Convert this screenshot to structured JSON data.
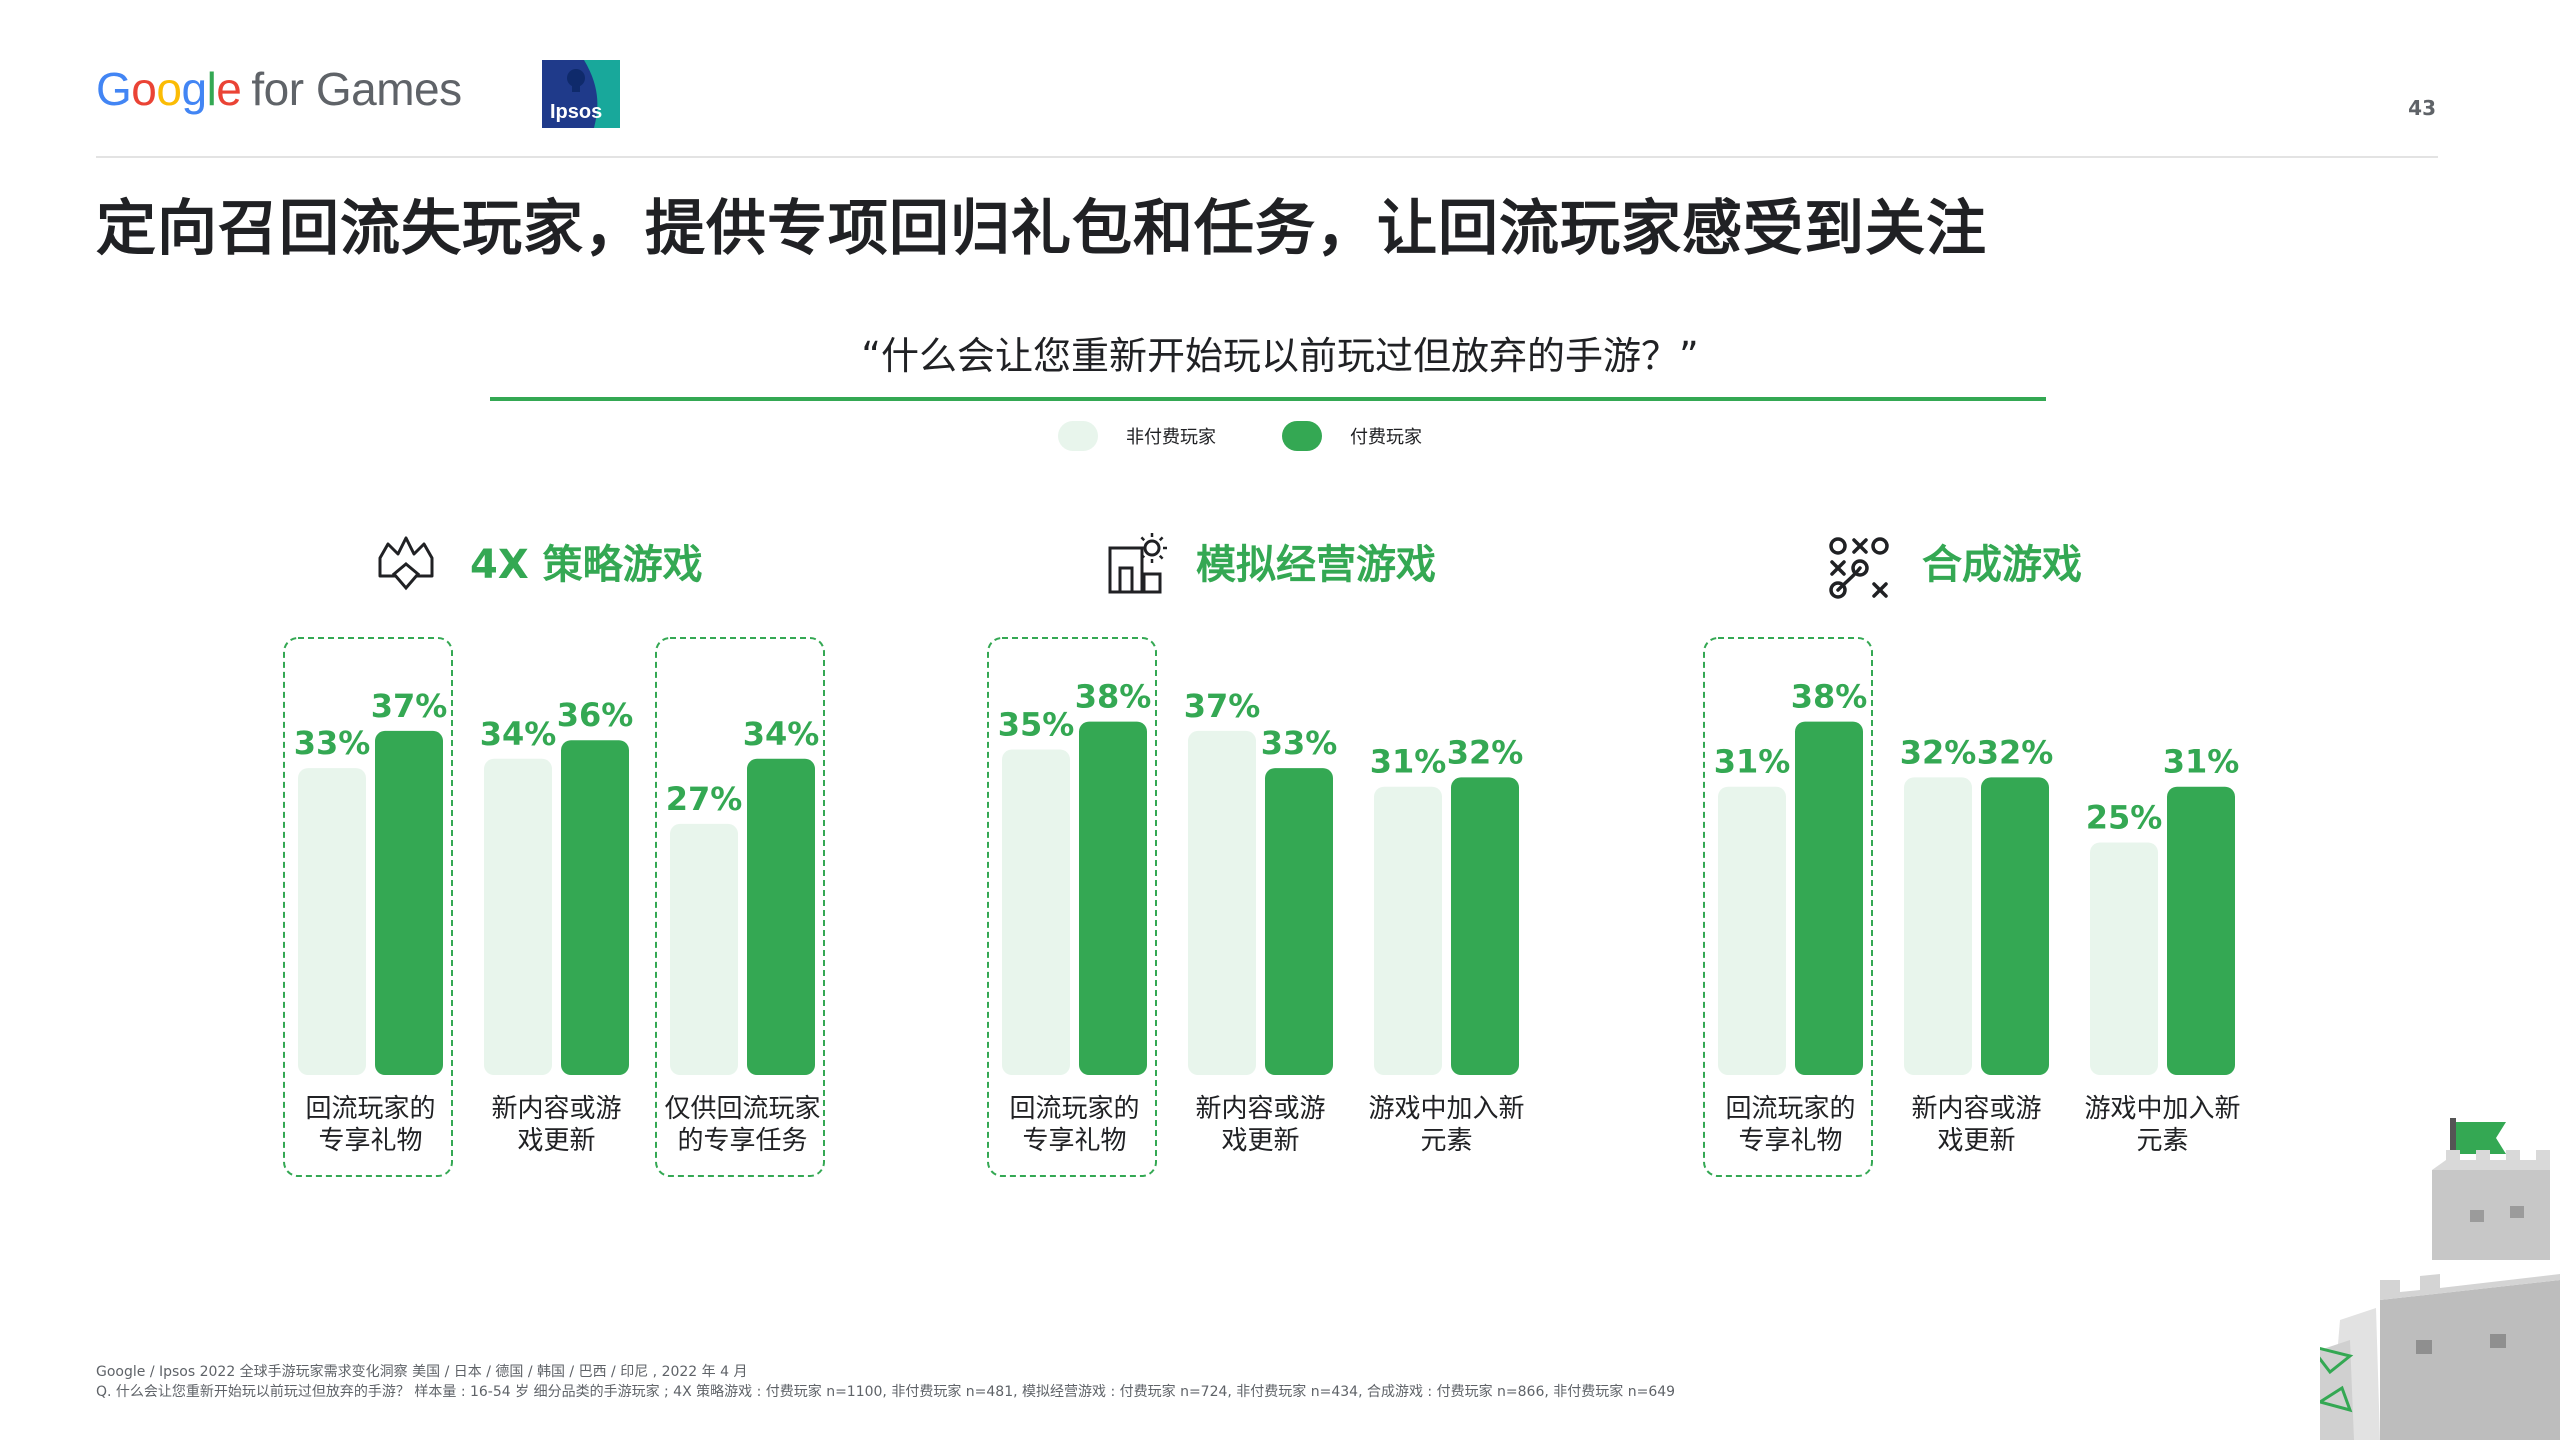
{
  "brand": {
    "google_for_games": {
      "google": "Google",
      "suffix": "for Games"
    },
    "ipsos": "Ipsos"
  },
  "page_number": "43",
  "headline": "定向召回流失玩家，提供专项回归礼包和任务，让回流玩家感受到关注",
  "question": "“什么会让您重新开始玩以前玩过但放弃的手游？”",
  "legend": [
    {
      "label": "非付费玩家",
      "color": "#e8f5ec"
    },
    {
      "label": "付费玩家",
      "color": "#34a853"
    }
  ],
  "chart_data": [
    {
      "type": "bar",
      "title": "4X 策略游戏",
      "icon": "strategy-crown-icon",
      "categories": [
        "回流玩家的专享礼物",
        "新内容或游戏更新",
        "仅供回流玩家的专享任务"
      ],
      "category_lines": [
        [
          "回流玩家的",
          "专享礼物"
        ],
        [
          "新内容或游",
          "戏更新"
        ],
        [
          "仅供回流玩家",
          "的专享任务"
        ]
      ],
      "highlighted": [
        true,
        false,
        true
      ],
      "series": [
        {
          "name": "非付费玩家",
          "values": [
            33,
            34,
            27
          ]
        },
        {
          "name": "付费玩家",
          "values": [
            37,
            36,
            34
          ]
        }
      ],
      "value_suffix": "%",
      "ylim": [
        0,
        40
      ]
    },
    {
      "type": "bar",
      "title": "模拟经营游戏",
      "icon": "simulation-building-icon",
      "categories": [
        "回流玩家的专享礼物",
        "新内容或游戏更新",
        "游戏中加入新元素"
      ],
      "category_lines": [
        [
          "回流玩家的",
          "专享礼物"
        ],
        [
          "新内容或游",
          "戏更新"
        ],
        [
          "游戏中加入新",
          "元素"
        ]
      ],
      "highlighted": [
        true,
        false,
        false
      ],
      "series": [
        {
          "name": "非付费玩家",
          "values": [
            35,
            37,
            31
          ]
        },
        {
          "name": "付费玩家",
          "values": [
            38,
            33,
            32
          ]
        }
      ],
      "value_suffix": "%",
      "ylim": [
        0,
        40
      ]
    },
    {
      "type": "bar",
      "title": "合成游戏",
      "icon": "merge-tictactoe-icon",
      "categories": [
        "回流玩家的专享礼物",
        "新内容或游戏更新",
        "游戏中加入新元素"
      ],
      "category_lines": [
        [
          "回流玩家的",
          "专享礼物"
        ],
        [
          "新内容或游",
          "戏更新"
        ],
        [
          "游戏中加入新",
          "元素"
        ]
      ],
      "highlighted": [
        true,
        false,
        false
      ],
      "series": [
        {
          "name": "非付费玩家",
          "values": [
            31,
            32,
            25
          ]
        },
        {
          "name": "付费玩家",
          "values": [
            38,
            32,
            31
          ]
        }
      ],
      "value_suffix": "%",
      "ylim": [
        0,
        40
      ]
    }
  ],
  "colors": {
    "accent_green": "#34a853",
    "light_green": "#e8f5ec",
    "label_green": "#34a853",
    "highlight_border": "#34a853"
  },
  "footnote": {
    "line1": "Google / Ipsos 2022 全球手游玩家需求变化洞察 美国 / 日本 / 德国 / 韩国 / 巴西 / 印尼 , 2022 年 4 月",
    "line2": "Q. 什么会让您重新开始玩以前玩过但放弃的手游？ 样本量 : 16-54 岁 细分品类的手游玩家 ; 4X 策略游戏 : 付费玩家 n=1100, 非付费玩家 n=481, 模拟经营游戏 : 付费玩家 n=724, 非付费玩家 n=434, 合成游戏 : 付费玩家 n=866, 非付费玩家 n=649"
  }
}
